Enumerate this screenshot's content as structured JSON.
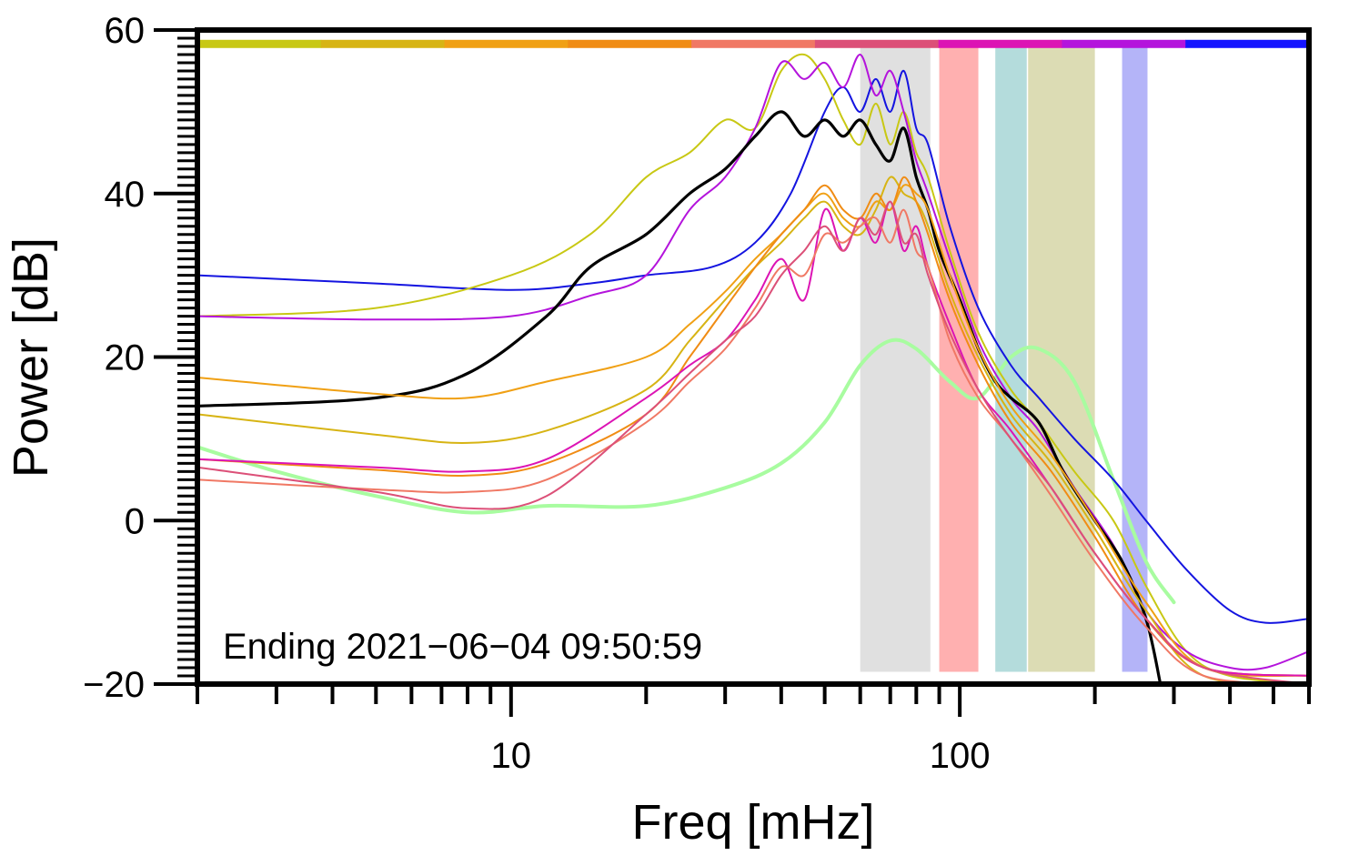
{
  "chart_data": {
    "type": "line",
    "xlabel": "Freq [mHz]",
    "ylabel": "Power [dB]",
    "xscale": "log",
    "xlim": [
      2,
      600
    ],
    "ylim": [
      -20,
      60
    ],
    "x_tick_labels": [
      "10",
      "100"
    ],
    "y_tick_labels": [
      "60",
      "40",
      "20",
      "0",
      "−20"
    ],
    "annotation": "Ending 2021−06−04 09:50:59",
    "grid": false,
    "legend": "none",
    "top_color_bar": [
      "#c8c814",
      "#d7b414",
      "#f0a014",
      "#f08c14",
      "#f07864",
      "#dc5078",
      "#dc14b4",
      "#b414dc",
      "#1414ff"
    ],
    "bands": [
      {
        "x0": 60,
        "x1": 86,
        "color": "#e0e0e0"
      },
      {
        "x0": 90,
        "x1": 110,
        "color": "#ffb0b0"
      },
      {
        "x0": 120,
        "x1": 141,
        "color": "#b4dcdc"
      },
      {
        "x0": 142,
        "x1": 200,
        "color": "#dcdcb4"
      },
      {
        "x0": 230,
        "x1": 262,
        "color": "#b4b4f8"
      }
    ],
    "series": [
      {
        "color": "#a8fca0",
        "width": 4,
        "points": [
          [
            2,
            9
          ],
          [
            3,
            6
          ],
          [
            5,
            3
          ],
          [
            8,
            1
          ],
          [
            12,
            1.8
          ],
          [
            20,
            1.8
          ],
          [
            30,
            4
          ],
          [
            40,
            7
          ],
          [
            50,
            12
          ],
          [
            60,
            19
          ],
          [
            70,
            22
          ],
          [
            80,
            21
          ],
          [
            95,
            17
          ],
          [
            110,
            15
          ],
          [
            130,
            20
          ],
          [
            150,
            21
          ],
          [
            180,
            17
          ],
          [
            220,
            5
          ],
          [
            260,
            -5
          ],
          [
            300,
            -10
          ]
        ]
      },
      {
        "color": "#1414e0",
        "width": 2,
        "points": [
          [
            2,
            30
          ],
          [
            5,
            29
          ],
          [
            10,
            28.2
          ],
          [
            15,
            29
          ],
          [
            20,
            30
          ],
          [
            28,
            31
          ],
          [
            35,
            34
          ],
          [
            42,
            40
          ],
          [
            50,
            50
          ],
          [
            55,
            53
          ],
          [
            60,
            50
          ],
          [
            65,
            54
          ],
          [
            70,
            50
          ],
          [
            75,
            55
          ],
          [
            80,
            48
          ],
          [
            85,
            46
          ],
          [
            95,
            36
          ],
          [
            110,
            26
          ],
          [
            130,
            19
          ],
          [
            150,
            15
          ],
          [
            180,
            10
          ],
          [
            220,
            5
          ],
          [
            260,
            0
          ],
          [
            320,
            -6
          ],
          [
            400,
            -11
          ],
          [
            480,
            -12.5
          ],
          [
            600,
            -12
          ]
        ]
      },
      {
        "color": "#c8c814",
        "width": 2,
        "points": [
          [
            2,
            25
          ],
          [
            5,
            26
          ],
          [
            10,
            30
          ],
          [
            15,
            35
          ],
          [
            20,
            42
          ],
          [
            25,
            45
          ],
          [
            30,
            49
          ],
          [
            35,
            48
          ],
          [
            40,
            55
          ],
          [
            45,
            57
          ],
          [
            50,
            54
          ],
          [
            55,
            49
          ],
          [
            60,
            46
          ],
          [
            65,
            51
          ],
          [
            70,
            46
          ],
          [
            75,
            50
          ],
          [
            80,
            45
          ],
          [
            85,
            42
          ],
          [
            95,
            33
          ],
          [
            110,
            23
          ],
          [
            130,
            16
          ],
          [
            150,
            12
          ],
          [
            180,
            6
          ],
          [
            220,
            0
          ],
          [
            260,
            -8
          ],
          [
            320,
            -16
          ],
          [
            400,
            -19
          ],
          [
            600,
            -20
          ]
        ]
      },
      {
        "color": "#b414dc",
        "width": 2,
        "points": [
          [
            2,
            25
          ],
          [
            5,
            24.6
          ],
          [
            10,
            25
          ],
          [
            15,
            27.5
          ],
          [
            20,
            30
          ],
          [
            25,
            38
          ],
          [
            30,
            42
          ],
          [
            35,
            48
          ],
          [
            40,
            56
          ],
          [
            45,
            54
          ],
          [
            50,
            56
          ],
          [
            55,
            53
          ],
          [
            60,
            57
          ],
          [
            65,
            52
          ],
          [
            70,
            55
          ],
          [
            75,
            50
          ],
          [
            80,
            44
          ],
          [
            85,
            40
          ],
          [
            95,
            32
          ],
          [
            110,
            22
          ],
          [
            130,
            15
          ],
          [
            150,
            11
          ],
          [
            180,
            4
          ],
          [
            220,
            -3
          ],
          [
            260,
            -11
          ],
          [
            320,
            -16
          ],
          [
            400,
            -18
          ],
          [
            480,
            -18
          ],
          [
            600,
            -16
          ]
        ]
      },
      {
        "color": "#000000",
        "width": 3.2,
        "points": [
          [
            2,
            14
          ],
          [
            5,
            15
          ],
          [
            8,
            18
          ],
          [
            12,
            25
          ],
          [
            15,
            31
          ],
          [
            20,
            35
          ],
          [
            25,
            40
          ],
          [
            30,
            43
          ],
          [
            35,
            47
          ],
          [
            40,
            50
          ],
          [
            45,
            47
          ],
          [
            50,
            49
          ],
          [
            55,
            47
          ],
          [
            60,
            49
          ],
          [
            65,
            46
          ],
          [
            70,
            44
          ],
          [
            75,
            48
          ],
          [
            80,
            42
          ],
          [
            85,
            38
          ],
          [
            90,
            33
          ],
          [
            100,
            27
          ],
          [
            110,
            21
          ],
          [
            120,
            17
          ],
          [
            130,
            15
          ],
          [
            150,
            12
          ],
          [
            170,
            6
          ],
          [
            200,
            0
          ],
          [
            230,
            -5
          ],
          [
            260,
            -12
          ],
          [
            280,
            -20
          ]
        ]
      },
      {
        "color": "#f0a014",
        "width": 2,
        "points": [
          [
            2,
            17.5
          ],
          [
            5,
            15.5
          ],
          [
            8,
            15
          ],
          [
            12,
            17
          ],
          [
            20,
            20
          ],
          [
            25,
            24
          ],
          [
            30,
            28
          ],
          [
            35,
            32
          ],
          [
            40,
            35
          ],
          [
            45,
            38
          ],
          [
            50,
            40
          ],
          [
            55,
            37
          ],
          [
            60,
            36
          ],
          [
            65,
            39
          ],
          [
            70,
            38
          ],
          [
            75,
            41
          ],
          [
            80,
            40
          ],
          [
            85,
            38
          ],
          [
            95,
            30
          ],
          [
            110,
            21
          ],
          [
            130,
            14
          ],
          [
            160,
            8
          ],
          [
            200,
            0
          ],
          [
            260,
            -10
          ],
          [
            350,
            -18
          ],
          [
            600,
            -19
          ]
        ]
      },
      {
        "color": "#d7b414",
        "width": 2,
        "points": [
          [
            2,
            13
          ],
          [
            5,
            10.5
          ],
          [
            8,
            9.5
          ],
          [
            12,
            11
          ],
          [
            20,
            16
          ],
          [
            25,
            22
          ],
          [
            30,
            27
          ],
          [
            35,
            31
          ],
          [
            40,
            34
          ],
          [
            45,
            37
          ],
          [
            50,
            39
          ],
          [
            55,
            36
          ],
          [
            60,
            35
          ],
          [
            65,
            38
          ],
          [
            70,
            42
          ],
          [
            75,
            40
          ],
          [
            80,
            39
          ],
          [
            85,
            36
          ],
          [
            95,
            28
          ],
          [
            110,
            20
          ],
          [
            130,
            13
          ],
          [
            160,
            7
          ],
          [
            200,
            -1
          ],
          [
            260,
            -11
          ],
          [
            350,
            -19
          ],
          [
            600,
            -20
          ]
        ]
      },
      {
        "color": "#f08c14",
        "width": 2,
        "points": [
          [
            2,
            7.5
          ],
          [
            5,
            6.2
          ],
          [
            8,
            5.5
          ],
          [
            12,
            7
          ],
          [
            20,
            13
          ],
          [
            25,
            20
          ],
          [
            30,
            26
          ],
          [
            35,
            31
          ],
          [
            40,
            35
          ],
          [
            45,
            38
          ],
          [
            50,
            41
          ],
          [
            55,
            38
          ],
          [
            60,
            37
          ],
          [
            65,
            40
          ],
          [
            70,
            38
          ],
          [
            75,
            42
          ],
          [
            80,
            39
          ],
          [
            85,
            35
          ],
          [
            95,
            27
          ],
          [
            110,
            19
          ],
          [
            130,
            12
          ],
          [
            160,
            6
          ],
          [
            200,
            -2
          ],
          [
            260,
            -12
          ],
          [
            350,
            -18
          ],
          [
            600,
            -19
          ]
        ]
      },
      {
        "color": "#dc14b4",
        "width": 2,
        "points": [
          [
            2,
            7.5
          ],
          [
            5,
            6.5
          ],
          [
            8,
            6
          ],
          [
            12,
            7.5
          ],
          [
            20,
            15
          ],
          [
            25,
            19
          ],
          [
            30,
            22
          ],
          [
            35,
            27
          ],
          [
            40,
            32
          ],
          [
            45,
            27
          ],
          [
            50,
            38
          ],
          [
            55,
            33
          ],
          [
            60,
            37
          ],
          [
            65,
            34
          ],
          [
            70,
            39
          ],
          [
            75,
            33
          ],
          [
            80,
            36
          ],
          [
            85,
            31
          ],
          [
            95,
            24
          ],
          [
            110,
            16
          ],
          [
            130,
            11
          ],
          [
            160,
            4
          ],
          [
            200,
            -4
          ],
          [
            260,
            -12
          ],
          [
            350,
            -18
          ],
          [
            600,
            -19
          ]
        ]
      },
      {
        "color": "#f07864",
        "width": 2,
        "points": [
          [
            2,
            5
          ],
          [
            5,
            3.8
          ],
          [
            8,
            3.5
          ],
          [
            12,
            5
          ],
          [
            20,
            12
          ],
          [
            25,
            17
          ],
          [
            30,
            21
          ],
          [
            35,
            26
          ],
          [
            40,
            31
          ],
          [
            45,
            30
          ],
          [
            50,
            35
          ],
          [
            55,
            34
          ],
          [
            60,
            36
          ],
          [
            65,
            37
          ],
          [
            70,
            34
          ],
          [
            75,
            38
          ],
          [
            80,
            33
          ],
          [
            85,
            31
          ],
          [
            95,
            22
          ],
          [
            110,
            15
          ],
          [
            130,
            10
          ],
          [
            160,
            3
          ],
          [
            200,
            -5
          ],
          [
            260,
            -13
          ],
          [
            350,
            -19
          ],
          [
            600,
            -20
          ]
        ]
      },
      {
        "color": "#dc5078",
        "width": 2,
        "points": [
          [
            2,
            6.5
          ],
          [
            5,
            3.5
          ],
          [
            8,
            1.5
          ],
          [
            12,
            3
          ],
          [
            20,
            13
          ],
          [
            25,
            18
          ],
          [
            30,
            22
          ],
          [
            35,
            25
          ],
          [
            40,
            30
          ],
          [
            45,
            33
          ],
          [
            50,
            36
          ],
          [
            55,
            33
          ],
          [
            60,
            37
          ],
          [
            65,
            35
          ],
          [
            70,
            39
          ],
          [
            75,
            34
          ],
          [
            80,
            35
          ],
          [
            85,
            30
          ],
          [
            95,
            23
          ],
          [
            110,
            16
          ],
          [
            130,
            10
          ],
          [
            160,
            4
          ],
          [
            200,
            -4
          ],
          [
            260,
            -12
          ],
          [
            350,
            -18
          ],
          [
            600,
            -20
          ]
        ]
      }
    ]
  }
}
